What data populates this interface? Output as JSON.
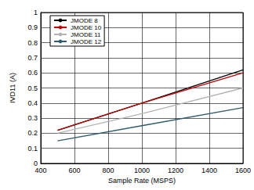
{
  "chart_data": {
    "type": "line",
    "x_label": "Sample Rate (MSPS)",
    "y_label": "IVD11 (A)",
    "x": [
      500,
      1000,
      1600
    ],
    "series": [
      {
        "name": "JMODE 8",
        "color": "#000000",
        "values": [
          0.22,
          0.4,
          0.62
        ]
      },
      {
        "name": "JMODE 10",
        "color": "#c00000",
        "values": [
          0.22,
          0.4,
          0.6
        ]
      },
      {
        "name": "JMODE 11",
        "color": "#b4b4b4",
        "values": [
          0.2,
          0.33,
          0.5
        ]
      },
      {
        "name": "JMODE 12",
        "color": "#2f5b6e",
        "values": [
          0.15,
          0.25,
          0.37
        ]
      }
    ],
    "xlim": [
      400,
      1600
    ],
    "xticks": [
      400,
      600,
      800,
      1000,
      1200,
      1400,
      1600
    ],
    "ylim": [
      0,
      1
    ],
    "yticks": [
      0,
      0.1,
      0.2,
      0.3,
      0.4,
      0.5,
      0.6,
      0.7,
      0.8,
      0.9,
      1
    ],
    "grid": true,
    "legend": "upper left"
  }
}
